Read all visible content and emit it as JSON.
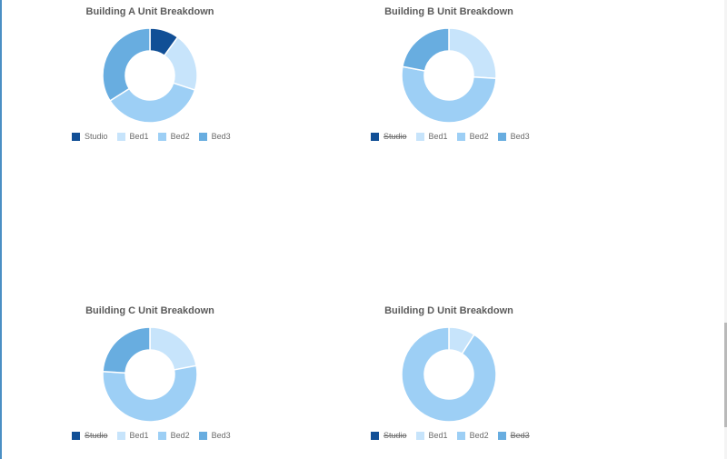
{
  "colors": {
    "Studio": "#114f96",
    "Bed1": "#c7e4fb",
    "Bed2": "#9dcff5",
    "Bed3": "#68ade0"
  },
  "legend_labels": [
    "Studio",
    "Bed1",
    "Bed2",
    "Bed3"
  ],
  "charts": [
    {
      "title": "Building A Unit Breakdown",
      "hidden": []
    },
    {
      "title": "Building B Unit Breakdown",
      "hidden": [
        "Studio"
      ]
    },
    {
      "title": "Building C Unit Breakdown",
      "hidden": [
        "Studio"
      ]
    },
    {
      "title": "Building D Unit Breakdown",
      "hidden": [
        "Studio",
        "Bed3"
      ]
    }
  ],
  "chart_data": [
    {
      "type": "pie",
      "subtype": "donut",
      "title": "Building A Unit Breakdown",
      "categories": [
        "Studio",
        "Bed1",
        "Bed2",
        "Bed3"
      ],
      "values": [
        10,
        20,
        36,
        34
      ],
      "unit": "percent (estimated)",
      "hidden_series": [],
      "legend_position": "bottom"
    },
    {
      "type": "pie",
      "subtype": "donut",
      "title": "Building B Unit Breakdown",
      "categories": [
        "Studio",
        "Bed1",
        "Bed2",
        "Bed3"
      ],
      "values": [
        0,
        26,
        52,
        22
      ],
      "unit": "percent (estimated)",
      "hidden_series": [
        "Studio"
      ],
      "legend_position": "bottom"
    },
    {
      "type": "pie",
      "subtype": "donut",
      "title": "Building C Unit Breakdown",
      "categories": [
        "Studio",
        "Bed1",
        "Bed2",
        "Bed3"
      ],
      "values": [
        0,
        22,
        54,
        24
      ],
      "unit": "percent (estimated)",
      "hidden_series": [
        "Studio"
      ],
      "legend_position": "bottom"
    },
    {
      "type": "pie",
      "subtype": "donut",
      "title": "Building D Unit Breakdown",
      "categories": [
        "Studio",
        "Bed1",
        "Bed2",
        "Bed3"
      ],
      "values": [
        0,
        9,
        91,
        0
      ],
      "unit": "percent (estimated)",
      "hidden_series": [
        "Studio",
        "Bed3"
      ],
      "legend_position": "bottom"
    }
  ]
}
